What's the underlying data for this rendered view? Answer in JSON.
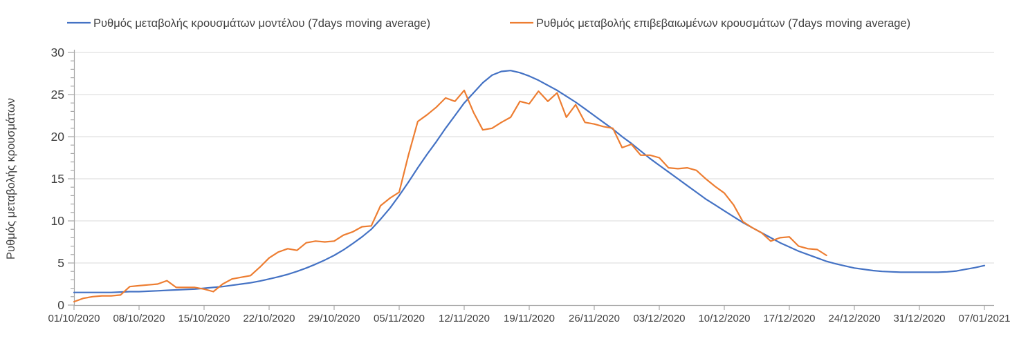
{
  "colors": {
    "model_line": "#4472C4",
    "confirmed_line": "#ED7D31",
    "gridline": "#D9D9D9",
    "axis": "#A6A6A6",
    "tick": "#A6A6A6",
    "text": "#404040"
  },
  "chart_data": {
    "type": "line",
    "title": "",
    "xlabel": "",
    "ylabel": "Ρυθμός μεταβολής κρουσμάτων",
    "ylim": [
      0,
      30
    ],
    "y_major_ticks": [
      0,
      5,
      10,
      15,
      20,
      25,
      30
    ],
    "y_minor_step": 1,
    "grid": "horizontal",
    "legend_position": "top",
    "x_unit": "days since 01/10/2020",
    "x_range_days": [
      0,
      98
    ],
    "x_tick_interval_days": 7,
    "x_tick_labels": [
      "01/10/2020",
      "08/10/2020",
      "15/10/2020",
      "22/10/2020",
      "29/10/2020",
      "05/11/2020",
      "12/11/2020",
      "19/11/2020",
      "26/11/2020",
      "03/12/2020",
      "10/12/2020",
      "17/12/2020",
      "24/12/2020",
      "31/12/2020",
      "07/01/2021"
    ],
    "series": [
      {
        "name": "Ρυθμός μεταβολής κρουσμάτων μοντέλου (7days moving average)",
        "color": "#4472C4",
        "start_day": 0,
        "values": [
          1.5,
          1.5,
          1.5,
          1.5,
          1.5,
          1.55,
          1.6,
          1.6,
          1.65,
          1.7,
          1.75,
          1.8,
          1.85,
          1.9,
          2.0,
          2.1,
          2.2,
          2.35,
          2.5,
          2.65,
          2.85,
          3.1,
          3.35,
          3.65,
          4.0,
          4.4,
          4.85,
          5.35,
          5.9,
          6.55,
          7.3,
          8.1,
          9.0,
          10.2,
          11.5,
          13.0,
          14.6,
          16.3,
          17.9,
          19.4,
          21.0,
          22.5,
          24.0,
          25.2,
          26.4,
          27.3,
          27.75,
          27.85,
          27.6,
          27.2,
          26.7,
          26.1,
          25.5,
          24.8,
          24.1,
          23.3,
          22.5,
          21.7,
          20.9,
          20.0,
          19.2,
          18.3,
          17.4,
          16.6,
          15.8,
          15.0,
          14.2,
          13.4,
          12.6,
          11.9,
          11.2,
          10.5,
          9.8,
          9.2,
          8.6,
          8.0,
          7.4,
          6.9,
          6.4,
          6.0,
          5.6,
          5.2,
          4.9,
          4.65,
          4.4,
          4.25,
          4.1,
          4.0,
          3.95,
          3.9,
          3.9,
          3.9,
          3.9,
          3.9,
          3.95,
          4.05,
          4.25,
          4.45,
          4.7
        ]
      },
      {
        "name": "Ρυθμός μεταβολής επιβεβαιωμένων κρουσμάτων (7days moving average)",
        "color": "#ED7D31",
        "start_day": 0,
        "values": [
          0.4,
          0.8,
          1.0,
          1.1,
          1.1,
          1.2,
          2.2,
          2.3,
          2.4,
          2.5,
          2.9,
          2.1,
          2.1,
          2.1,
          1.9,
          1.6,
          2.5,
          3.1,
          3.3,
          3.5,
          4.5,
          5.6,
          6.3,
          6.7,
          6.5,
          7.4,
          7.6,
          7.5,
          7.6,
          8.3,
          8.7,
          9.3,
          9.4,
          11.8,
          12.7,
          13.4,
          17.8,
          21.8,
          22.6,
          23.5,
          24.6,
          24.2,
          25.5,
          22.9,
          20.8,
          21.0,
          21.7,
          22.3,
          24.2,
          23.9,
          25.4,
          24.2,
          25.2,
          22.3,
          23.8,
          21.7,
          21.5,
          21.2,
          21.0,
          18.7,
          19.1,
          17.8,
          17.8,
          17.5,
          16.3,
          16.2,
          16.3,
          16.0,
          15.0,
          14.1,
          13.3,
          11.9,
          9.9,
          9.2,
          8.6,
          7.6,
          8.0,
          8.1,
          7.0,
          6.7,
          6.6,
          5.9
        ]
      }
    ]
  }
}
